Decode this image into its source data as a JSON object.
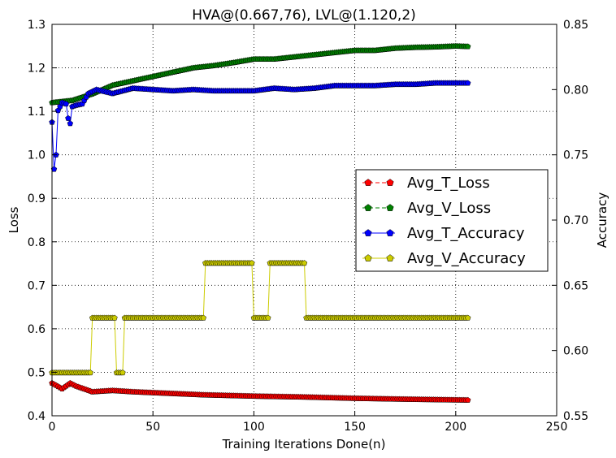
{
  "chart_data": {
    "type": "line",
    "title": "HVA@(0.667,76), LVL@(1.120,2)",
    "xlabel": "Training Iterations Done(n)",
    "ylabel": "Loss",
    "y2label": "Accuracy",
    "xlim": [
      0,
      250
    ],
    "ylim": [
      0.4,
      1.3
    ],
    "y2lim": [
      0.55,
      0.85
    ],
    "xticks": [
      "0",
      "50",
      "100",
      "150",
      "200",
      "250"
    ],
    "yticks": [
      "0.4",
      "0.5",
      "0.6",
      "0.7",
      "0.8",
      "0.9",
      "1.0",
      "1.1",
      "1.2",
      "1.3"
    ],
    "y2ticks": [
      "0.55",
      "0.60",
      "0.65",
      "0.70",
      "0.75",
      "0.80",
      "0.85"
    ],
    "grid": true,
    "legend_position": "center-right",
    "series": [
      {
        "name": "Avg_T_Loss",
        "axis": "left",
        "color": "#ff0000",
        "line_style": "dashed",
        "anchors": [
          [
            0,
            0.475
          ],
          [
            2,
            0.47
          ],
          [
            5,
            0.462
          ],
          [
            9,
            0.475
          ],
          [
            12,
            0.468
          ],
          [
            17,
            0.46
          ],
          [
            20,
            0.455
          ],
          [
            30,
            0.458
          ],
          [
            40,
            0.455
          ],
          [
            50,
            0.453
          ],
          [
            75,
            0.448
          ],
          [
            100,
            0.445
          ],
          [
            125,
            0.443
          ],
          [
            150,
            0.44
          ],
          [
            175,
            0.438
          ],
          [
            206,
            0.436
          ]
        ]
      },
      {
        "name": "Avg_V_Loss",
        "axis": "left",
        "color": "#008000",
        "line_style": "dashed",
        "anchors": [
          [
            0,
            1.12
          ],
          [
            10,
            1.125
          ],
          [
            20,
            1.14
          ],
          [
            30,
            1.16
          ],
          [
            40,
            1.17
          ],
          [
            50,
            1.18
          ],
          [
            60,
            1.19
          ],
          [
            70,
            1.2
          ],
          [
            80,
            1.205
          ],
          [
            90,
            1.212
          ],
          [
            100,
            1.22
          ],
          [
            110,
            1.22
          ],
          [
            120,
            1.225
          ],
          [
            130,
            1.23
          ],
          [
            140,
            1.235
          ],
          [
            150,
            1.24
          ],
          [
            160,
            1.24
          ],
          [
            170,
            1.245
          ],
          [
            180,
            1.247
          ],
          [
            190,
            1.248
          ],
          [
            200,
            1.25
          ],
          [
            206,
            1.249
          ]
        ]
      },
      {
        "name": "Avg_T_Accuracy",
        "axis": "right",
        "color": "#0000ff",
        "line_style": "solid",
        "anchors": [
          [
            0,
            0.775
          ],
          [
            1,
            0.739
          ],
          [
            2,
            0.75
          ],
          [
            3,
            0.784
          ],
          [
            5,
            0.79
          ],
          [
            7,
            0.789
          ],
          [
            8,
            0.778
          ],
          [
            9,
            0.774
          ],
          [
            10,
            0.787
          ],
          [
            12,
            0.788
          ],
          [
            15,
            0.789
          ],
          [
            18,
            0.797
          ],
          [
            22,
            0.8
          ],
          [
            30,
            0.797
          ],
          [
            40,
            0.801
          ],
          [
            50,
            0.8
          ],
          [
            60,
            0.799
          ],
          [
            70,
            0.8
          ],
          [
            80,
            0.799
          ],
          [
            90,
            0.799
          ],
          [
            100,
            0.799
          ],
          [
            110,
            0.801
          ],
          [
            120,
            0.8
          ],
          [
            130,
            0.801
          ],
          [
            140,
            0.803
          ],
          [
            150,
            0.803
          ],
          [
            160,
            0.803
          ],
          [
            170,
            0.804
          ],
          [
            180,
            0.804
          ],
          [
            190,
            0.805
          ],
          [
            206,
            0.805
          ]
        ]
      },
      {
        "name": "Avg_V_Accuracy",
        "axis": "right",
        "color": "#cccc00",
        "line_style": "solid",
        "anchors": [
          [
            0,
            0.583
          ],
          [
            19,
            0.583
          ],
          [
            19,
            0.625
          ],
          [
            31,
            0.625
          ],
          [
            31,
            0.583
          ],
          [
            35,
            0.583
          ],
          [
            35,
            0.625
          ],
          [
            75,
            0.625
          ],
          [
            75,
            0.667
          ],
          [
            99,
            0.667
          ],
          [
            99,
            0.625
          ],
          [
            107,
            0.625
          ],
          [
            107,
            0.667
          ],
          [
            125,
            0.667
          ],
          [
            125,
            0.625
          ],
          [
            206,
            0.625
          ]
        ]
      }
    ]
  }
}
